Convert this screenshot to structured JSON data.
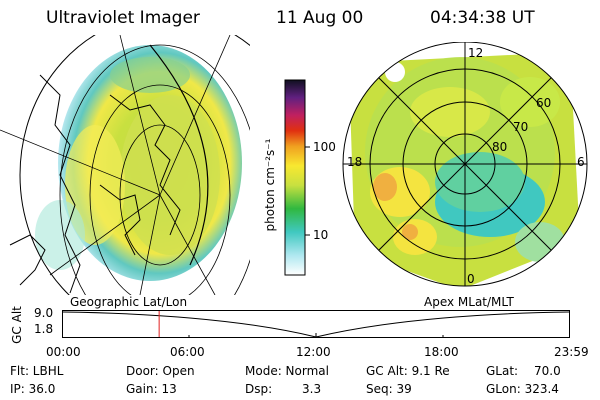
{
  "header": {
    "instrument": "Ultraviolet Imager",
    "date": "11 Aug 00",
    "time": "04:34:38 UT"
  },
  "colorbar": {
    "unit_label": "photon cm⁻²s⁻¹",
    "ticks": [
      "100",
      "10"
    ]
  },
  "left_panel": {
    "label": "Geographic Lat/Lon"
  },
  "right_panel": {
    "label": "Apex MLat/MLT",
    "mlt_labels": [
      "12",
      "18",
      "6",
      "0"
    ],
    "mlat_labels": [
      "60",
      "70",
      "80"
    ]
  },
  "timeline": {
    "axis_label": "GC Alt",
    "y_ticks": [
      "9.0",
      "1.8"
    ],
    "x_ticks": [
      "00:00",
      "06:00",
      "12:00",
      "18:00",
      "23:59"
    ],
    "current_time_fraction": 0.19
  },
  "footer": {
    "filter": "Flt: LBHL",
    "ip": "IP: 36.0",
    "door": "Door: Open",
    "gain": "Gain: 13",
    "mode": "Mode: Normal",
    "dsp": "Dsp:",
    "dsp_value": "3.3",
    "gc_alt": "GC Alt: 9.1 Re",
    "seq": "Seq: 39",
    "glat": "GLat:",
    "glat_value": "70.0",
    "glon": "GLon: 323.4"
  }
}
